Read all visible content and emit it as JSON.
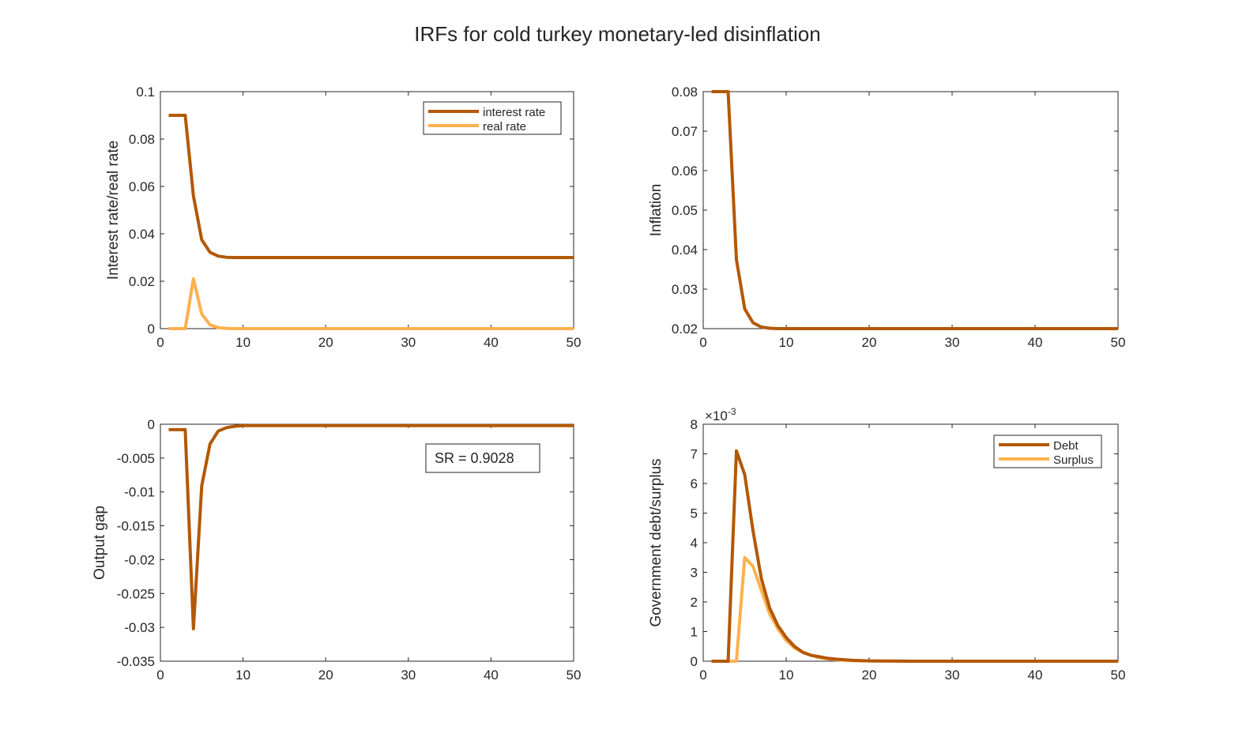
{
  "title": "IRFs for cold turkey monetary-led disinflation",
  "colors": {
    "dark": "#b35806",
    "light": "#fdb14f",
    "axis": "#262626"
  },
  "chart_data": [
    {
      "type": "line",
      "ylabel": "Interest rate/real rate",
      "xlim": [
        0,
        50
      ],
      "ylim": [
        0,
        0.1
      ],
      "xticks": [
        0,
        10,
        20,
        30,
        40,
        50
      ],
      "yticks": [
        0,
        0.02,
        0.04,
        0.06,
        0.08,
        0.1
      ],
      "ytick_labels": [
        "0",
        "0.02",
        "0.04",
        "0.06",
        "0.08",
        "0.1"
      ],
      "legend": {
        "position": "top-right"
      },
      "series": [
        {
          "name": "interest rate",
          "color": "#b35806",
          "x": [
            1,
            2,
            3,
            4,
            5,
            6,
            7,
            8,
            9,
            10,
            12,
            15,
            20,
            30,
            40,
            50
          ],
          "y": [
            0.09,
            0.09,
            0.09,
            0.056,
            0.0375,
            0.0322,
            0.0306,
            0.0301,
            0.03,
            0.03,
            0.03,
            0.03,
            0.03,
            0.03,
            0.03,
            0.03
          ]
        },
        {
          "name": "real rate",
          "color": "#fdb14f",
          "x": [
            1,
            2,
            3,
            4,
            5,
            6,
            7,
            8,
            9,
            10,
            15,
            20,
            30,
            40,
            50
          ],
          "y": [
            0,
            0,
            0,
            0.021,
            0.0062,
            0.0016,
            0.0004,
            0.0001,
            0,
            0,
            0,
            0,
            0,
            0,
            0
          ]
        }
      ]
    },
    {
      "type": "line",
      "ylabel": "Inflation",
      "xlim": [
        0,
        50
      ],
      "ylim": [
        0.02,
        0.08
      ],
      "xticks": [
        0,
        10,
        20,
        30,
        40,
        50
      ],
      "yticks": [
        0.02,
        0.03,
        0.04,
        0.05,
        0.06,
        0.07,
        0.08
      ],
      "ytick_labels": [
        "0.02",
        "0.03",
        "0.04",
        "0.05",
        "0.06",
        "0.07",
        "0.08"
      ],
      "series": [
        {
          "color": "#b35806",
          "x": [
            1,
            2,
            3,
            4,
            5,
            6,
            7,
            8,
            9,
            10,
            12,
            15,
            20,
            30,
            40,
            50
          ],
          "y": [
            0.08,
            0.08,
            0.08,
            0.0375,
            0.025,
            0.0215,
            0.0204,
            0.0201,
            0.02,
            0.02,
            0.02,
            0.02,
            0.02,
            0.02,
            0.02,
            0.02
          ]
        }
      ]
    },
    {
      "type": "line",
      "ylabel": "Output gap",
      "xlim": [
        0,
        50
      ],
      "ylim": [
        -0.035,
        0
      ],
      "xticks": [
        0,
        10,
        20,
        30,
        40,
        50
      ],
      "yticks": [
        -0.035,
        -0.03,
        -0.025,
        -0.02,
        -0.015,
        -0.01,
        -0.005,
        0
      ],
      "ytick_labels": [
        "-0.035",
        "-0.03",
        "-0.025",
        "-0.02",
        "-0.015",
        "-0.01",
        "-0.005",
        "0"
      ],
      "annotation": {
        "text": "SR = 0.9028"
      },
      "series": [
        {
          "color": "#b35806",
          "x": [
            1,
            2,
            3,
            4,
            5,
            6,
            7,
            8,
            9,
            10,
            12,
            15,
            20,
            30,
            40,
            50
          ],
          "y": [
            -0.0008,
            -0.0008,
            -0.0008,
            -0.0302,
            -0.0091,
            -0.0029,
            -0.001,
            -0.0005,
            -0.0003,
            -0.0002,
            -0.0002,
            -0.0002,
            -0.0002,
            -0.0002,
            -0.0002,
            -0.0002
          ]
        }
      ]
    },
    {
      "type": "line",
      "ylabel": "Government debt/surplus",
      "xlim": [
        0,
        50
      ],
      "ylim": [
        0,
        0.008
      ],
      "exponent_label": "×10",
      "exponent_power": "-3",
      "xticks": [
        0,
        10,
        20,
        30,
        40,
        50
      ],
      "yticks": [
        0,
        0.001,
        0.002,
        0.003,
        0.004,
        0.005,
        0.006,
        0.007,
        0.008
      ],
      "ytick_labels": [
        "0",
        "1",
        "2",
        "3",
        "4",
        "5",
        "6",
        "7",
        "8"
      ],
      "legend": {
        "position": "top-right"
      },
      "series": [
        {
          "name": "Debt",
          "color": "#b35806",
          "x": [
            1,
            2,
            3,
            4,
            5,
            6,
            7,
            8,
            9,
            10,
            11,
            12,
            13,
            14,
            15,
            16,
            18,
            20,
            25,
            30,
            40,
            50
          ],
          "y": [
            0,
            0,
            0,
            0.0071,
            0.0063,
            0.0044,
            0.0028,
            0.0018,
            0.0012,
            0.0008,
            0.0005,
            0.0003,
            0.0002,
            0.00015,
            0.0001,
            7e-05,
            3e-05,
            1e-05,
            0,
            0,
            0,
            0
          ]
        },
        {
          "name": "Surplus",
          "color": "#fdb14f",
          "x": [
            1,
            2,
            3,
            4,
            5,
            6,
            7,
            8,
            9,
            10,
            11,
            12,
            13,
            14,
            15,
            16,
            18,
            20,
            25,
            30,
            40,
            50
          ],
          "y": [
            0,
            0,
            0,
            0,
            0.0035,
            0.0032,
            0.0024,
            0.0016,
            0.0011,
            0.0007,
            0.00045,
            0.0003,
            0.0002,
            0.00012,
            8e-05,
            5e-05,
            2e-05,
            1e-05,
            0,
            0,
            0,
            0
          ]
        }
      ]
    }
  ]
}
